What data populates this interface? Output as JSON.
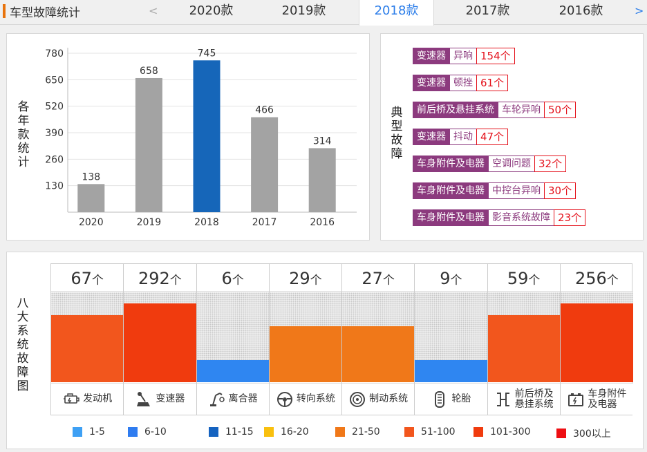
{
  "header": {
    "title": "车型故障统计",
    "prev_arrow": "<",
    "next_arrow": ">",
    "tabs": [
      "2020款",
      "2019款",
      "2018款",
      "2017款",
      "2016款"
    ],
    "active_tab": "2018款"
  },
  "year_chart": {
    "label": "各年款统计",
    "chart_data": {
      "type": "bar",
      "title": "各年款统计",
      "categories": [
        "2020",
        "2019",
        "2018",
        "2017",
        "2016"
      ],
      "values": [
        138,
        658,
        745,
        466,
        314
      ],
      "highlight": "2018",
      "yticks": [
        130,
        260,
        390,
        520,
        650,
        780
      ],
      "ylim": [
        0,
        780
      ],
      "bar_color": "#a3a3a3",
      "highlight_color": "#1666b9",
      "grid": true
    }
  },
  "typical": {
    "label": "典型故障",
    "items": [
      {
        "category": "变速器",
        "issue": "异响",
        "count": "154个"
      },
      {
        "category": "变速器",
        "issue": "顿挫",
        "count": "61个"
      },
      {
        "category": "前后桥及悬挂系统",
        "issue": "车轮异响",
        "count": "50个"
      },
      {
        "category": "变速器",
        "issue": "抖动",
        "count": "47个"
      },
      {
        "category": "车身附件及电器",
        "issue": "空调问题",
        "count": "32个"
      },
      {
        "category": "车身附件及电器",
        "issue": "中控台异响",
        "count": "30个"
      },
      {
        "category": "车身附件及电器",
        "issue": "影音系统故障",
        "count": "23个"
      }
    ]
  },
  "systems": {
    "label": "八大系统故障图",
    "unit": "个",
    "chart_data": {
      "type": "bar",
      "title": "八大系统故障图",
      "categories": [
        "发动机",
        "变速器",
        "离合器",
        "转向系统",
        "制动系统",
        "轮胎",
        "前后桥及悬挂系统",
        "车身附件及电器"
      ],
      "values": [
        67,
        292,
        6,
        29,
        27,
        9,
        59,
        256
      ],
      "level_fill": [
        0.75,
        0.88,
        0.25,
        0.62,
        0.62,
        0.25,
        0.75,
        0.88
      ],
      "colors": [
        "#f2561d",
        "#f03b0e",
        "#2f86f1",
        "#f07819",
        "#f07819",
        "#2f86f1",
        "#f2561d",
        "#f03b0e"
      ]
    },
    "items": [
      {
        "label1": "发动机",
        "label2": "",
        "icon": "engine-icon"
      },
      {
        "label1": "变速器",
        "label2": "",
        "icon": "gear-shift-icon"
      },
      {
        "label1": "离合器",
        "label2": "",
        "icon": "clutch-icon"
      },
      {
        "label1": "转向系统",
        "label2": "",
        "icon": "steering-wheel-icon"
      },
      {
        "label1": "制动系统",
        "label2": "",
        "icon": "brake-disc-icon"
      },
      {
        "label1": "轮胎",
        "label2": "",
        "icon": "tire-icon"
      },
      {
        "label1": "前后桥及",
        "label2": "悬挂系统",
        "icon": "suspension-icon"
      },
      {
        "label1": "车身附件",
        "label2": "及电器",
        "icon": "battery-icon"
      }
    ]
  },
  "legend": [
    {
      "label": "1-5",
      "color": "#3ea0f4"
    },
    {
      "label": "6-10",
      "color": "#2f7cf0"
    },
    {
      "label": "11-15",
      "color": "#1563c0"
    },
    {
      "label": "16-20",
      "color": "#f9c00e"
    },
    {
      "label": "21-50",
      "color": "#f07819"
    },
    {
      "label": "51-100",
      "color": "#f2561d"
    },
    {
      "label": "101-300",
      "color": "#f03b0e"
    },
    {
      "label": "300以上",
      "color": "#ee0f13"
    }
  ]
}
